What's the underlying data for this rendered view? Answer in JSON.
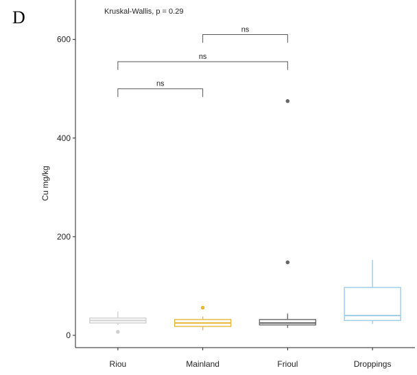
{
  "chart_data": {
    "type": "boxplot",
    "panel_label": "D",
    "ylabel": "Cu mg/kg",
    "xlabel": "",
    "ylim": [
      -25,
      680
    ],
    "y_ticks": [
      0,
      200,
      400,
      600
    ],
    "categories": [
      "Riou",
      "Mainland",
      "Frioul",
      "Droppings"
    ],
    "grid": false,
    "boxes": [
      {
        "name": "Riou",
        "color": "#cfcfcf",
        "whisker_low": 21,
        "q1": 25,
        "median": 30,
        "q3": 35,
        "whisker_high": 48,
        "outliers": [
          7
        ]
      },
      {
        "name": "Mainland",
        "color": "#e8b83a",
        "whisker_low": 10,
        "q1": 18,
        "median": 25,
        "q3": 32,
        "whisker_high": 38,
        "outliers": [
          56
        ]
      },
      {
        "name": "Frioul",
        "color": "#666666",
        "whisker_low": 15,
        "q1": 21,
        "median": 25,
        "q3": 32,
        "whisker_high": 44,
        "outliers": [
          148,
          475
        ]
      },
      {
        "name": "Droppings",
        "color": "#9ccbe6",
        "whisker_low": 23,
        "q1": 30,
        "median": 40,
        "q3": 97,
        "whisker_high": 153,
        "outliers": []
      }
    ],
    "annotations": {
      "global_test": "Kruskal-Wallis, p = 0.29",
      "comparisons": [
        {
          "from": 0,
          "to": 1,
          "y": 500,
          "label": "ns"
        },
        {
          "from": 0,
          "to": 2,
          "y": 555,
          "label": "ns"
        },
        {
          "from": 1,
          "to": 2,
          "y": 610,
          "label": "ns"
        }
      ]
    }
  }
}
